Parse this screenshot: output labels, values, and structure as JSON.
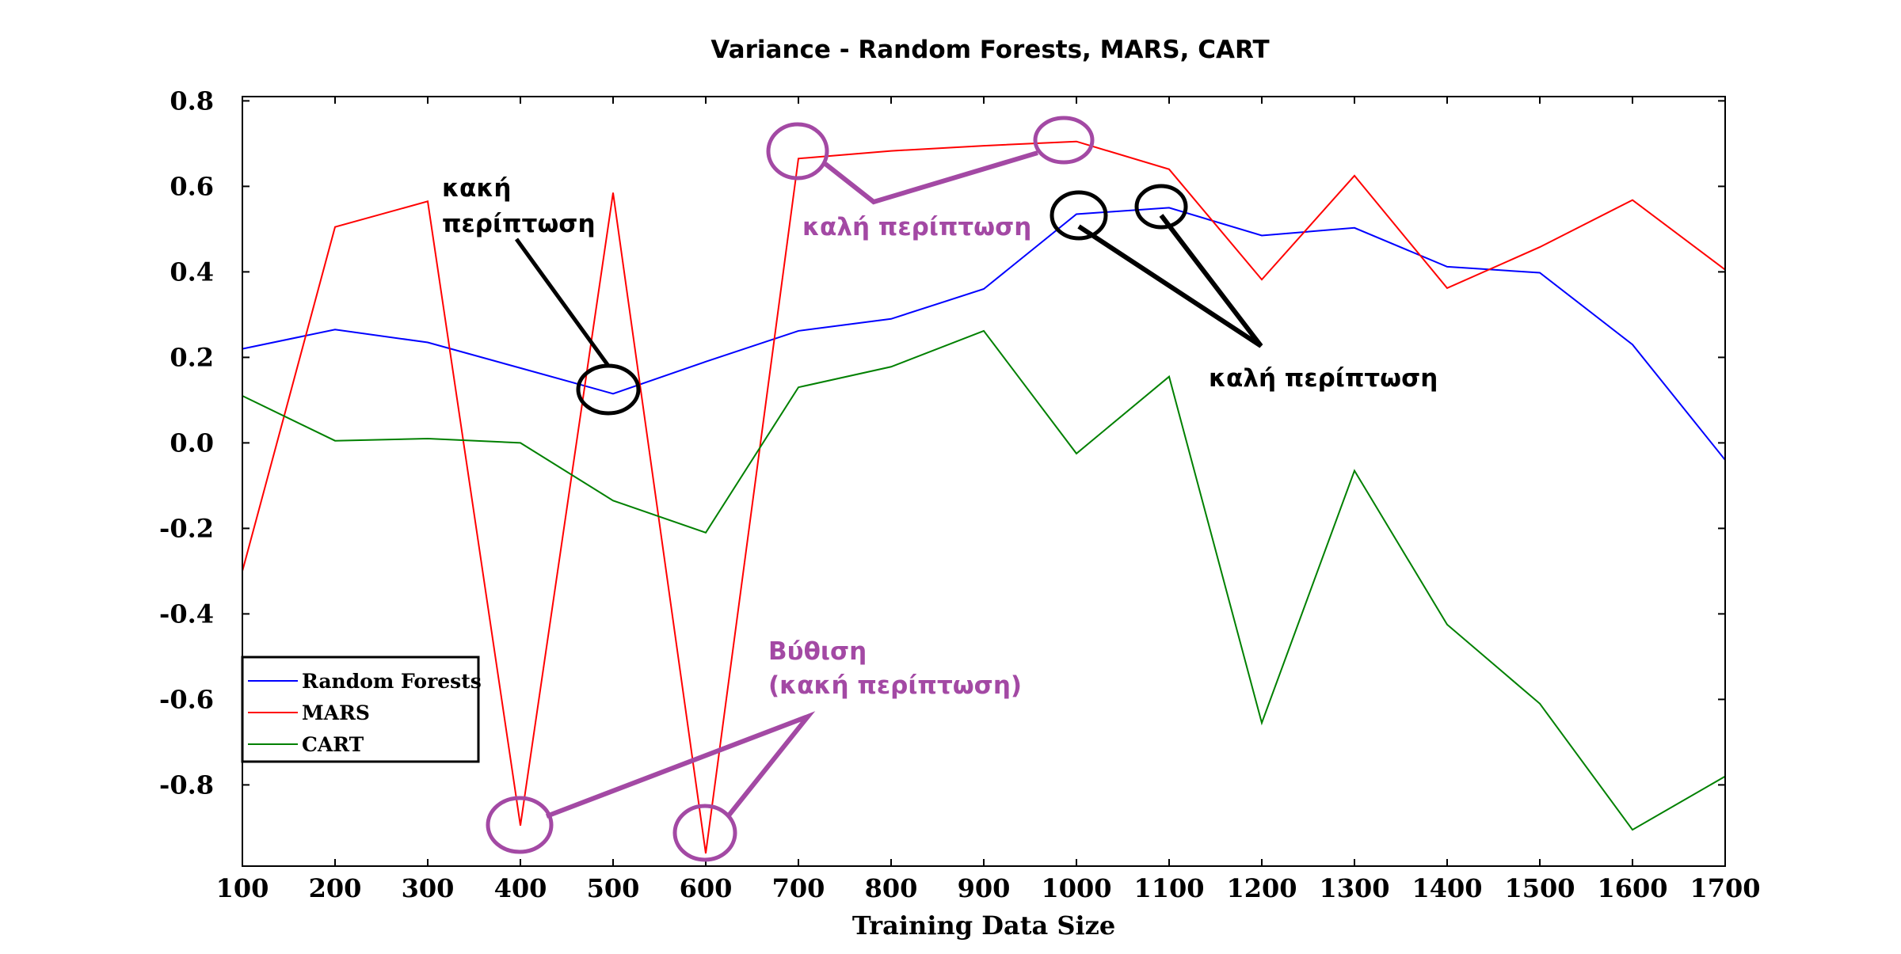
{
  "chart_data": {
    "type": "line",
    "title": "Variance - Random Forests, MARS, CART",
    "xlabel": "Training Data Size",
    "ylabel": "",
    "x": [
      100,
      200,
      300,
      400,
      500,
      600,
      700,
      800,
      900,
      1000,
      1100,
      1200,
      1300,
      1400,
      1500,
      1600,
      1700
    ],
    "xlim": [
      100,
      1700
    ],
    "ylim": [
      -0.99,
      0.81
    ],
    "xticks": [
      "100",
      "200",
      "300",
      "400",
      "500",
      "600",
      "700",
      "800",
      "900",
      "1000",
      "1100",
      "1200",
      "1300",
      "1400",
      "1500",
      "1600",
      "1700"
    ],
    "yticks": [
      {
        "value": 0.8,
        "label": "0.8"
      },
      {
        "value": 0.6,
        "label": "0.6"
      },
      {
        "value": 0.4,
        "label": "0.4"
      },
      {
        "value": 0.2,
        "label": "0.2"
      },
      {
        "value": 0.0,
        "label": "0.0"
      },
      {
        "value": -0.2,
        "label": "-0.2"
      },
      {
        "value": -0.4,
        "label": "-0.4"
      },
      {
        "value": -0.6,
        "label": "-0.6"
      },
      {
        "value": -0.8,
        "label": "-0.8"
      }
    ],
    "grid": false,
    "legend_position": "lower-left",
    "series": [
      {
        "name": "Random Forests",
        "color": "#0000ff",
        "values": [
          0.22,
          0.265,
          0.235,
          0.175,
          0.115,
          0.19,
          0.262,
          0.29,
          0.36,
          0.535,
          0.55,
          0.485,
          0.503,
          0.412,
          0.398,
          0.23,
          -0.04
        ]
      },
      {
        "name": "MARS",
        "color": "#ff0000",
        "values": [
          -0.3,
          0.505,
          0.565,
          -0.895,
          0.585,
          -0.96,
          0.665,
          0.683,
          0.695,
          0.705,
          0.64,
          0.382,
          0.625,
          0.362,
          0.458,
          0.568,
          0.405
        ]
      },
      {
        "name": "CART",
        "color": "#008000",
        "values": [
          0.11,
          0.005,
          0.01,
          0.0,
          -0.135,
          -0.21,
          0.13,
          0.178,
          0.262,
          -0.025,
          0.155,
          -0.655,
          -0.065,
          -0.425,
          -0.61,
          -0.905,
          -0.78
        ]
      }
    ],
    "annotations": [
      {
        "id": "bad-case-top",
        "lines": [
          "κακή",
          "περίπτωση"
        ],
        "color": "#000000"
      },
      {
        "id": "good-case-purple",
        "lines": [
          "καλή περίπτωση"
        ],
        "color": "#a349a4"
      },
      {
        "id": "good-case-black",
        "lines": [
          "καλή περίπτωση"
        ],
        "color": "#000000"
      },
      {
        "id": "dip-bad-case",
        "lines": [
          "Βύθιση",
          "(κακή περίπτωση)"
        ],
        "color": "#a349a4"
      }
    ]
  }
}
